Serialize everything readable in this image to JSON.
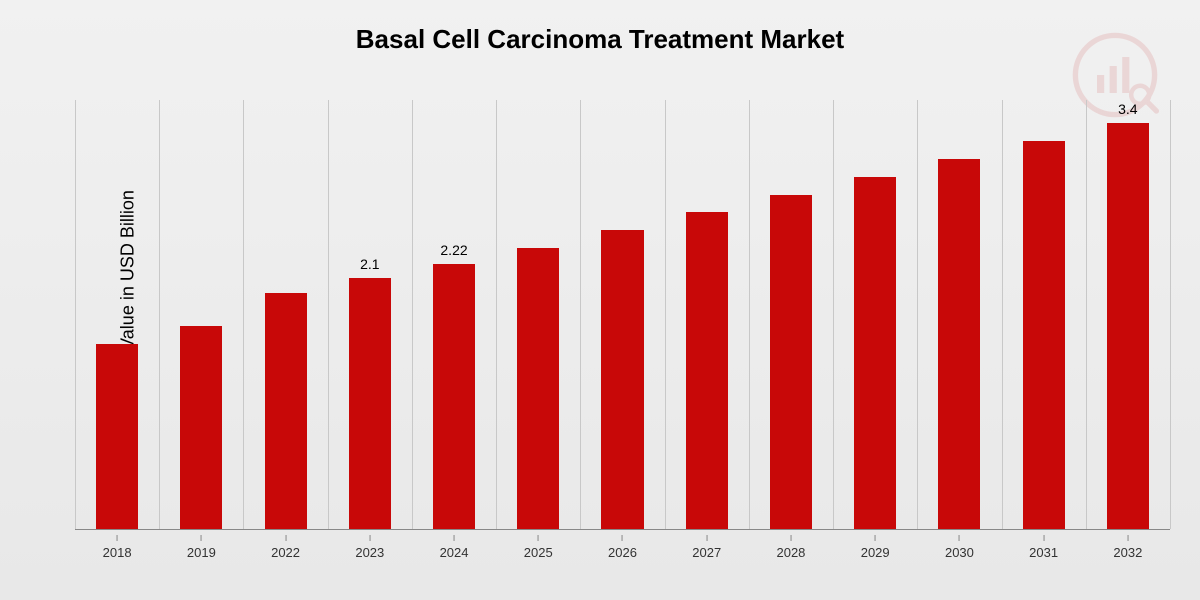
{
  "chart": {
    "type": "bar",
    "title": "Basal Cell Carcinoma Treatment Market",
    "title_fontsize": 26,
    "ylabel": "Market Value in USD Billion",
    "ylabel_fontsize": 18,
    "background_gradient_top": "#f1f1f1",
    "background_gradient_bottom": "#e8e8e8",
    "bar_color": "#c80808",
    "grid_color": "#c8c8c8",
    "axis_color": "#888",
    "tick_fontsize": 13,
    "value_label_fontsize": 14,
    "ylim": [
      0,
      3.6
    ],
    "bar_width_ratio": 0.5,
    "categories": [
      "2018",
      "2019",
      "2022",
      "2023",
      "2024",
      "2025",
      "2026",
      "2027",
      "2028",
      "2029",
      "2030",
      "2031",
      "2032"
    ],
    "values": [
      1.55,
      1.7,
      1.98,
      2.1,
      2.22,
      2.35,
      2.5,
      2.65,
      2.8,
      2.95,
      3.1,
      3.25,
      3.4
    ],
    "value_labels_visible": [
      false,
      false,
      false,
      true,
      true,
      false,
      false,
      false,
      false,
      false,
      false,
      false,
      true
    ],
    "value_labels_text": [
      "",
      "",
      "",
      "2.1",
      "2.22",
      "",
      "",
      "",
      "",
      "",
      "",
      "",
      "3.4"
    ]
  },
  "watermark": {
    "name": "research-logo-icon",
    "opacity": 0.1,
    "color": "#c80808"
  }
}
